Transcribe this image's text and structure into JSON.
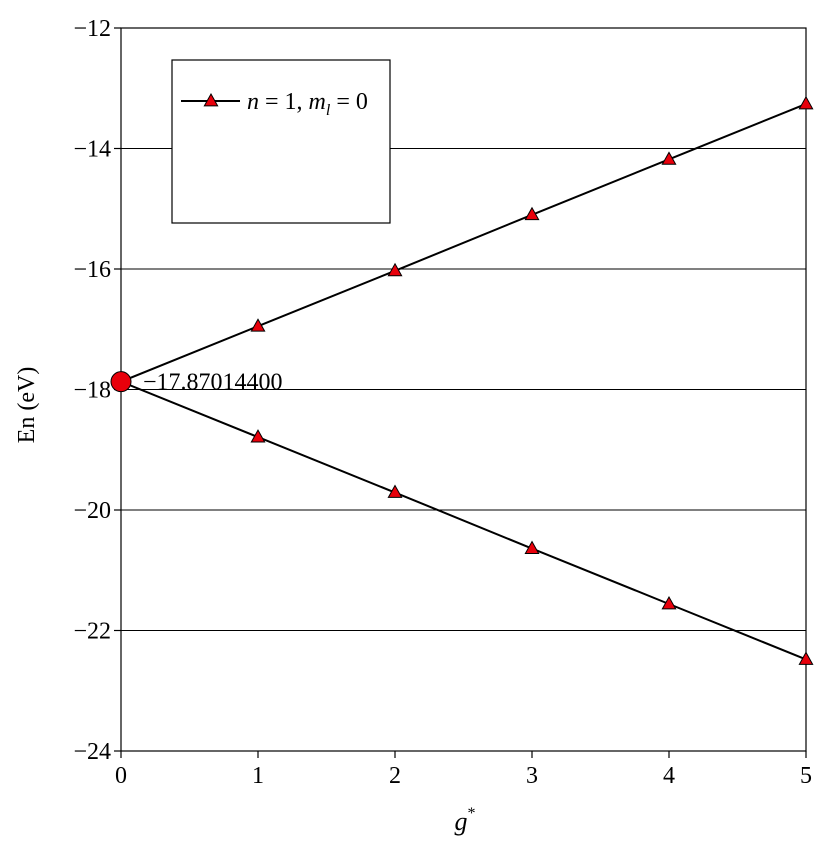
{
  "chart_data": {
    "type": "line",
    "xlabel": "g",
    "xlabel_sup": "*",
    "ylabel": "En (eV)",
    "xlim": [
      0,
      5
    ],
    "ylim": [
      -24,
      -12
    ],
    "x_ticks": [
      0,
      1,
      2,
      3,
      4,
      5
    ],
    "y_ticks": [
      -24,
      -22,
      -20,
      -18,
      -16,
      -14,
      -12
    ],
    "x_tick_labels": [
      "0",
      "1",
      "2",
      "3",
      "4",
      "5"
    ],
    "y_tick_labels": [
      "−24",
      "−22",
      "−20",
      "−18",
      "−16",
      "−14",
      "−12"
    ],
    "grid": "horizontal",
    "legend_position": "top-left",
    "series": [
      {
        "name": "n = 1, m_l = 0",
        "legend": {
          "n": "n",
          "eq1": " = 1, ",
          "m": "m",
          "sub": "l",
          "eq2": " = 0"
        },
        "marker": "triangle",
        "x": [
          0,
          1,
          2,
          3,
          4,
          5
        ],
        "y": [
          -17.87,
          -16.95,
          -16.03,
          -15.1,
          -14.18,
          -13.26
        ]
      },
      {
        "name": "",
        "marker": "triangle",
        "x": [
          0,
          1,
          2,
          3,
          4,
          5
        ],
        "y": [
          -17.87,
          -18.79,
          -19.71,
          -20.64,
          -21.56,
          -22.48
        ]
      }
    ],
    "annotation": {
      "x": 0,
      "y": -17.870144,
      "label": "−17.87014400",
      "marker": "circle"
    },
    "colors": {
      "marker_fill": "#e8000b",
      "line": "#000000",
      "grid": "#000000",
      "background": "#ffffff"
    }
  }
}
